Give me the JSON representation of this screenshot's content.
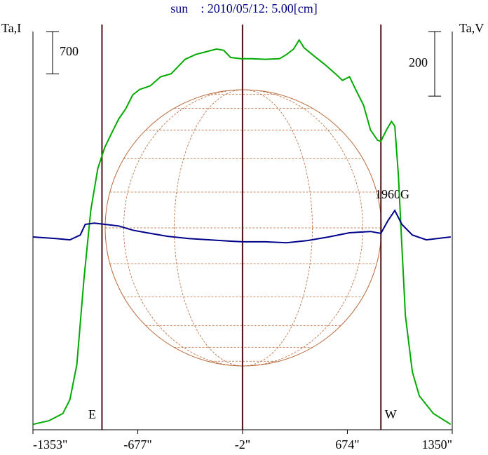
{
  "chart_data": {
    "type": "line",
    "title": "sun    : 2010/05/12: 5.00[cm]",
    "ylabel": "Ta,I",
    "y2label": "Ta,V",
    "xlim": [
      -1353,
      1350
    ],
    "xticks": [
      {
        "value": -1353,
        "label": "-1353\""
      },
      {
        "value": -677,
        "label": "-677\""
      },
      {
        "value": -2,
        "label": "-2\""
      },
      {
        "value": 674,
        "label": "674\""
      },
      {
        "value": 1350,
        "label": "1350\""
      }
    ],
    "ylim": [
      0,
      6600
    ],
    "y2lim": [
      0,
      1233
    ],
    "scale_bars": [
      {
        "value": 700,
        "axis": "y"
      },
      {
        "value": 200,
        "axis": "y2"
      }
    ],
    "limb_lines": [
      {
        "x": -908,
        "label": "E"
      },
      {
        "x": -2
      },
      {
        "x": 890,
        "label": "W"
      }
    ],
    "annotation": "1960G",
    "series": [
      {
        "color": "#00aa00",
        "x": [
          -1353,
          -1250,
          -1160,
          -1115,
          -1070,
          -1025,
          -980,
          -935,
          -890,
          -845,
          -800,
          -755,
          -710,
          -665,
          -597,
          -530,
          -462,
          -417,
          -372,
          -304,
          -214,
          -169,
          -124,
          -79,
          -11,
          57,
          147,
          237,
          282,
          327,
          363,
          395,
          462,
          530,
          597,
          642,
          688,
          733,
          778,
          823,
          868,
          890,
          926,
          958,
          980,
          1003,
          1025,
          1048,
          1093,
          1138,
          1228,
          1340
        ],
        "values": [
          90,
          150,
          270,
          500,
          1080,
          2480,
          3640,
          4330,
          4680,
          4920,
          5150,
          5320,
          5550,
          5640,
          5700,
          5850,
          5900,
          6020,
          6140,
          6220,
          6280,
          6310,
          6290,
          6170,
          6150,
          6150,
          6140,
          6150,
          6220,
          6310,
          6460,
          6330,
          6190,
          6050,
          5900,
          5790,
          5850,
          5610,
          5380,
          4970,
          4800,
          4780,
          4970,
          5110,
          5030,
          4220,
          3060,
          1890,
          960,
          560,
          270,
          90
        ]
      },
      {
        "color": "#00008b",
        "axis": "y2",
        "x": [
          -1353,
          -1205,
          -1115,
          -1048,
          -1016,
          -957,
          -890,
          -800,
          -710,
          -619,
          -484,
          -349,
          -214,
          -79,
          -2,
          147,
          282,
          417,
          552,
          688,
          823,
          890,
          935,
          980,
          1025,
          1093,
          1183,
          1340
        ],
        "values": [
          597,
          592,
          588,
          603,
          636,
          640,
          636,
          631,
          618,
          610,
          599,
          592,
          588,
          584,
          582,
          582,
          579,
          586,
          597,
          610,
          614,
          608,
          647,
          679,
          636,
          603,
          588,
          597
        ]
      }
    ]
  }
}
